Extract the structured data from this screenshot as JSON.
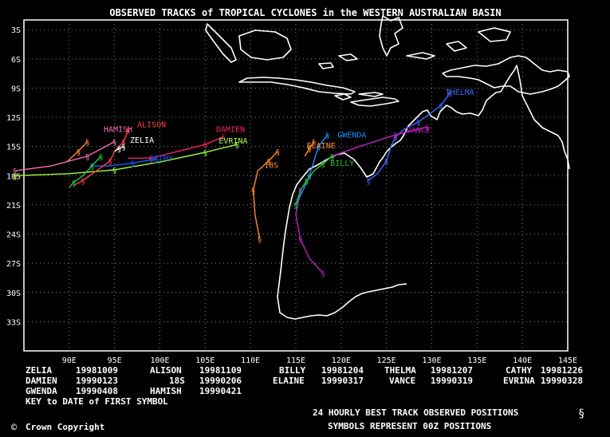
{
  "title": "OBSERVED TRACKS of TROPICAL CYCLONES in the WESTERN AUSTRALIAN BASIN",
  "lat_labels": [
    "3S",
    "6S",
    "9S",
    "12S",
    "15S",
    "18S",
    "21S",
    "24S",
    "27S",
    "30S",
    "33S"
  ],
  "lon_labels": [
    "90E",
    "95E",
    "100E",
    "105E",
    "110E",
    "115E",
    "120E",
    "125E",
    "130E",
    "135E",
    "140E",
    "145E"
  ],
  "legend": {
    "rows": [
      [
        [
          "ZELIA",
          "19981009"
        ],
        [
          "ALISON",
          "19981109"
        ],
        [
          "BILLY",
          "19981204"
        ],
        [
          "THELMA",
          "19981207"
        ],
        [
          "CATHY",
          "19981226"
        ]
      ],
      [
        [
          "DAMIEN",
          "19990123"
        ],
        [
          "18S",
          "19990206"
        ],
        [
          "ELAINE",
          "19990317"
        ],
        [
          "VANCE",
          "19990319"
        ],
        [
          "EVRINA",
          "19990328"
        ]
      ],
      [
        [
          "GWENDA",
          "19990408"
        ],
        [
          "HAMISH",
          "19990421"
        ]
      ]
    ],
    "key_note": "KEY to DATE of FIRST SYMBOL"
  },
  "footer": {
    "best_track": "24 HOURLY BEST TRACK OBSERVED POSITIONS",
    "symbols": "SYMBOLS REPRESENT 00Z POSITIONS",
    "copyright": "Crown Copyright"
  },
  "storms": [
    {
      "name": "THELMA",
      "color": "#3a6bff",
      "label": [
        131.5,
        -9.7
      ],
      "track": [
        [
          132.0,
          -9.5
        ],
        [
          131.0,
          -10.8
        ],
        [
          130.0,
          -11.5
        ],
        [
          128.5,
          -12.5
        ],
        [
          127.0,
          -13.2
        ],
        [
          126.0,
          -14.0
        ],
        [
          125.5,
          -15.0
        ],
        [
          125.0,
          -16.5
        ],
        [
          124.0,
          -17.8
        ],
        [
          123.0,
          -18.5
        ]
      ]
    },
    {
      "name": "VANCE",
      "color": "#c020c0",
      "label": [
        127.2,
        -13.6
      ],
      "track": [
        [
          129.5,
          -13.0
        ],
        [
          126.0,
          -13.8
        ],
        [
          122.0,
          -15.0
        ],
        [
          119.0,
          -16.0
        ],
        [
          117.0,
          -17.5
        ],
        [
          115.5,
          -19.5
        ],
        [
          115.0,
          -22.0
        ],
        [
          115.5,
          -24.5
        ],
        [
          116.5,
          -26.5
        ],
        [
          118.0,
          -28.0
        ]
      ]
    },
    {
      "name": "GWENDA",
      "color": "#1e90ff",
      "label": [
        119.6,
        -14.1
      ],
      "track": [
        [
          118.5,
          -13.8
        ],
        [
          117.5,
          -15.0
        ],
        [
          117.0,
          -16.5
        ],
        [
          116.5,
          -18.0
        ],
        [
          115.8,
          -19.5
        ],
        [
          115.0,
          -21.0
        ]
      ]
    },
    {
      "name": "BILLY",
      "color": "#20c020",
      "label": [
        118.8,
        -17.0
      ],
      "track": [
        [
          119.0,
          -16.0
        ],
        [
          118.0,
          -16.8
        ],
        [
          117.0,
          -17.5
        ],
        [
          116.2,
          -18.5
        ],
        [
          115.5,
          -19.5
        ],
        [
          115.0,
          -21.0
        ]
      ]
    },
    {
      "name": "ELAINE",
      "color": "#ff8c30",
      "label": [
        116.2,
        -15.2
      ],
      "track": [
        [
          117.0,
          -14.5
        ],
        [
          116.5,
          -15.2
        ],
        [
          116.0,
          -16.0
        ]
      ]
    },
    {
      "name": "18S",
      "color": "#ff8c30",
      "label": [
        111.5,
        -17.2
      ],
      "track": [
        [
          113.0,
          -15.5
        ],
        [
          112.0,
          -16.5
        ],
        [
          110.8,
          -17.5
        ],
        [
          110.3,
          -19.5
        ],
        [
          110.5,
          -22.0
        ],
        [
          111.0,
          -24.5
        ]
      ]
    },
    {
      "name": "DAMIEN",
      "color": "#ff2060",
      "label": [
        106.2,
        -13.5
      ],
      "track": [
        [
          107.0,
          -14.0
        ],
        [
          105.0,
          -14.8
        ],
        [
          102.0,
          -15.5
        ],
        [
          99.0,
          -16.2
        ],
        [
          96.5,
          -16.2
        ]
      ]
    },
    {
      "name": "EVRINA",
      "color": "#a0ff40",
      "label": [
        106.5,
        -14.7
      ],
      "track": [
        [
          108.5,
          -14.8
        ],
        [
          105.0,
          -15.6
        ],
        [
          100.0,
          -16.6
        ],
        [
          95.0,
          -17.4
        ],
        [
          90.0,
          -17.8
        ],
        [
          84.0,
          -18.0
        ]
      ]
    },
    {
      "name": "CATHY",
      "color": "#1060ff",
      "label": [
        98.8,
        -16.5
      ],
      "track": [
        [
          99.5,
          -16.3
        ],
        [
          97.0,
          -16.7
        ],
        [
          94.5,
          -17.0
        ],
        [
          92.5,
          -17.0
        ]
      ]
    },
    {
      "name": "ALISON",
      "color": "#ff4040",
      "label": [
        97.5,
        -13.0
      ],
      "track": [
        [
          96.5,
          -13.3
        ],
        [
          96.0,
          -14.5
        ],
        [
          95.0,
          -15.5
        ],
        [
          94.5,
          -16.5
        ],
        [
          93.0,
          -17.5
        ],
        [
          91.5,
          -18.5
        ],
        [
          90.5,
          -19.0
        ]
      ]
    },
    {
      "name": "HAMISH",
      "color": "#ff6ab0",
      "label": [
        93.8,
        -13.5
      ],
      "track": [
        [
          95.0,
          -14.5
        ],
        [
          92.0,
          -16.0
        ],
        [
          88.0,
          -17.0
        ],
        [
          84.0,
          -17.5
        ]
      ]
    },
    {
      "name": "ZELIA",
      "color": "#ffffff",
      "label": [
        96.7,
        -14.6
      ],
      "track": [
        [
          96.0,
          -15.0
        ],
        [
          95.5,
          -15.2
        ],
        [
          95.0,
          -15.5
        ]
      ]
    },
    {
      "name": "",
      "color": "#ff8c30",
      "label": null,
      "track": [
        [
          92.0,
          -14.5
        ],
        [
          91.0,
          -15.5
        ],
        [
          89.8,
          -16.5
        ]
      ]
    },
    {
      "name": "",
      "color": "#30c040",
      "track": [
        [
          93.5,
          -16.0
        ],
        [
          92.5,
          -17.0
        ],
        [
          91.5,
          -18.0
        ],
        [
          90.5,
          -18.7
        ],
        [
          90.0,
          -19.2
        ]
      ]
    }
  ]
}
